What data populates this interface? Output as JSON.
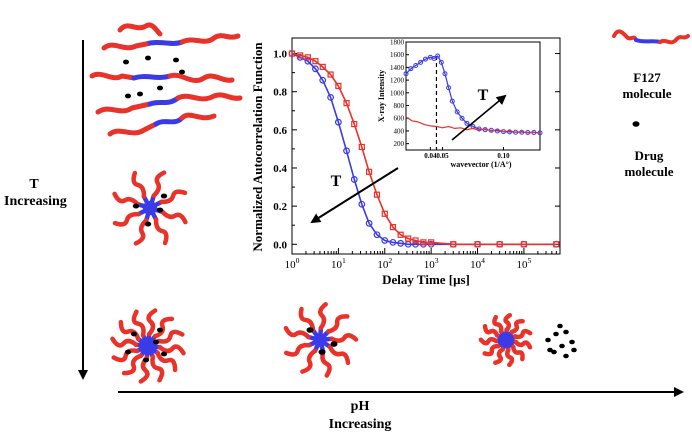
{
  "figure": {
    "t_label_line1": "T",
    "t_label_line2": "Increasing",
    "ph_label_line1": "pH",
    "ph_label_line2": "Increasing",
    "legend_f127_line1": "F127",
    "legend_f127_line2": "molecule",
    "legend_drug_line1": "Drug",
    "legend_drug_line2": "molecule",
    "colors": {
      "pol_red": "#e8322a",
      "pol_blue": "#3a3ae6",
      "drug": "#000000"
    },
    "icons": [
      "polymer-chain-icon",
      "drug-dot-icon",
      "micelle-icon",
      "aggregate-icon"
    ]
  },
  "chart_data": [
    {
      "type": "scatter",
      "title": "",
      "xlabel": "Delay Time [μs]",
      "ylabel": "Normalized Autocorrelation Function",
      "x_scale": "log",
      "xlim": [
        1,
        600000
      ],
      "ylim": [
        -0.03,
        1.05
      ],
      "x_tick_labels": [
        "10^0",
        "10^1",
        "10^2",
        "10^3",
        "10^4",
        "10^5"
      ],
      "x_tick_values": [
        1,
        10,
        100,
        1000,
        10000,
        100000
      ],
      "y_tick_labels": [
        "0.0",
        "0.2",
        "0.4",
        "0.6",
        "0.8",
        "1.0"
      ],
      "y_tick_values": [
        0,
        0.2,
        0.4,
        0.6,
        0.8,
        1.0
      ],
      "annotation": "T",
      "arrow_direction": "toward shorter decay times",
      "series": [
        {
          "color": "#3a3ae6",
          "marker": "circle",
          "x": [
            1,
            1.5,
            2.2,
            3.2,
            4.6,
            6.8,
            10,
            15,
            22,
            32,
            46,
            68,
            100,
            150,
            220,
            320,
            460,
            680,
            1000,
            3000,
            10000,
            30000,
            100000,
            500000
          ],
          "y": [
            1.0,
            0.98,
            0.96,
            0.92,
            0.86,
            0.77,
            0.64,
            0.49,
            0.34,
            0.21,
            0.11,
            0.05,
            0.02,
            0.01,
            0.005,
            0.0,
            0.0,
            0.0,
            0.0,
            0.0,
            0.0,
            0.0,
            0.0,
            0.0
          ]
        },
        {
          "color": "#e8322a",
          "marker": "square",
          "x": [
            1,
            1.5,
            2.2,
            3.2,
            4.6,
            6.8,
            10,
            15,
            22,
            32,
            46,
            68,
            100,
            150,
            220,
            320,
            460,
            680,
            1000,
            3000,
            10000,
            30000,
            100000,
            500000
          ],
          "y": [
            1.0,
            0.99,
            0.98,
            0.96,
            0.93,
            0.89,
            0.83,
            0.74,
            0.63,
            0.51,
            0.38,
            0.26,
            0.16,
            0.09,
            0.05,
            0.03,
            0.02,
            0.01,
            0.01,
            0.0,
            0.0,
            0.0,
            0.0,
            0.0
          ]
        }
      ]
    },
    {
      "type": "line",
      "title": "",
      "xlabel": "wavevector (1/A°)",
      "ylabel": "X-ray Intensity",
      "xlim": [
        0.02,
        0.13
      ],
      "ylim": [
        100,
        1800
      ],
      "x_tick_labels": [
        "0.04",
        "0.05",
        "0.10"
      ],
      "x_tick_values": [
        0.04,
        0.05,
        0.1
      ],
      "y_tick_labels": [
        "200",
        "400",
        "600",
        "800",
        "1000",
        "1200",
        "1400",
        "1600",
        "1800"
      ],
      "y_tick_values": [
        200,
        400,
        600,
        800,
        1000,
        1200,
        1400,
        1600,
        1800
      ],
      "annotation": "T",
      "marker_line_x": 0.045,
      "series": [
        {
          "color": "#3a3ae6",
          "marker": "circle",
          "x": [
            0.02,
            0.024,
            0.028,
            0.032,
            0.036,
            0.04,
            0.043,
            0.046,
            0.049,
            0.052,
            0.055,
            0.058,
            0.062,
            0.066,
            0.07,
            0.075,
            0.08,
            0.085,
            0.09,
            0.095,
            0.1,
            0.105,
            0.11,
            0.115,
            0.12,
            0.125,
            0.13
          ],
          "y": [
            1300,
            1380,
            1430,
            1480,
            1530,
            1560,
            1540,
            1580,
            1480,
            1300,
            1080,
            870,
            700,
            600,
            520,
            470,
            430,
            420,
            410,
            400,
            390,
            385,
            380,
            380,
            375,
            375,
            370
          ]
        },
        {
          "color": "#e8322a",
          "marker": "none",
          "x": [
            0.02,
            0.025,
            0.03,
            0.035,
            0.04,
            0.045,
            0.05,
            0.055,
            0.06,
            0.065,
            0.07,
            0.075,
            0.08,
            0.085,
            0.09,
            0.095,
            0.1,
            0.105,
            0.11,
            0.115,
            0.12,
            0.125,
            0.13
          ],
          "y": [
            620,
            560,
            540,
            500,
            480,
            470,
            450,
            470,
            440,
            450,
            420,
            440,
            410,
            430,
            400,
            420,
            390,
            400,
            380,
            390,
            370,
            380,
            370
          ]
        }
      ]
    }
  ]
}
